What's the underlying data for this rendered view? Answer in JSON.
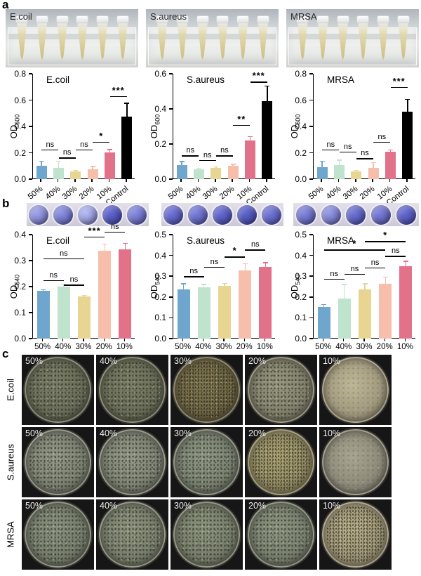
{
  "palette": {
    "bar_colors": [
      "#6FA6CD",
      "#BFE3CD",
      "#E9D592",
      "#F7BEAC",
      "#E2718A",
      "#000000"
    ],
    "axis_color": "#000000"
  },
  "panels": {
    "a": {
      "letter": "a",
      "photos": [
        {
          "label": "E.coil"
        },
        {
          "label": "S.aureus"
        },
        {
          "label": "MRSA"
        }
      ],
      "tubes_per_rack": 6
    },
    "b": {
      "letter": "b",
      "strips": [
        {
          "name": "E.coil wells",
          "wells": [
            "#7E81C1",
            "#6D72BB",
            "#9094C9",
            "#4C50AB",
            "#6A6EB8"
          ]
        },
        {
          "name": "S.aureus wells",
          "wells": [
            "#575BB0",
            "#6064B4",
            "#5155AD",
            "#4B4FA9",
            "#5C60B2"
          ]
        },
        {
          "name": "MRSA wells",
          "wells": [
            "#666AB6",
            "#7478BD",
            "#575BAF",
            "#6165B3",
            "#5054AC"
          ]
        }
      ]
    },
    "c": {
      "letter": "c",
      "rows": [
        {
          "label": "E.coil",
          "dishes": [
            {
              "label": "50%",
              "color": "#696C58",
              "texture": "speckled"
            },
            {
              "label": "40%",
              "color": "#6A6D58",
              "texture": "speckled"
            },
            {
              "label": "30%",
              "color": "#6F6646",
              "texture": "dense"
            },
            {
              "label": "20%",
              "color": "#82816D",
              "texture": "speckled"
            },
            {
              "label": "10%",
              "color": "#A29A7F",
              "texture": "lawn"
            }
          ]
        },
        {
          "label": "S.aureus",
          "dishes": [
            {
              "label": "50%",
              "color": "#7C8172",
              "texture": "speckled"
            },
            {
              "label": "40%",
              "color": "#7D8273",
              "texture": "speckled"
            },
            {
              "label": "30%",
              "color": "#788070",
              "texture": "speckled"
            },
            {
              "label": "20%",
              "color": "#958D66",
              "texture": "dense"
            },
            {
              "label": "10%",
              "color": "#8E8B7A",
              "texture": "lawn"
            }
          ]
        },
        {
          "label": "MRSA",
          "dishes": [
            {
              "label": "50%",
              "color": "#757C6C",
              "texture": "speckled"
            },
            {
              "label": "40%",
              "color": "#787E6C",
              "texture": "speckled"
            },
            {
              "label": "30%",
              "color": "#777D6B",
              "texture": "speckled"
            },
            {
              "label": "20%",
              "color": "#787F6E",
              "texture": "speckled"
            },
            {
              "label": "10%",
              "color": "#A1987A",
              "texture": "dense"
            }
          ]
        }
      ]
    }
  },
  "chart_data": [
    {
      "id": "a-ecoil",
      "type": "bar",
      "panel": "a",
      "title": "E.coil",
      "ylabel": "OD",
      "ylabel_sub": "600",
      "categories": [
        "50%",
        "40%",
        "30%",
        "20%",
        "10%",
        "Control"
      ],
      "values": [
        0.1,
        0.085,
        0.06,
        0.075,
        0.205,
        0.475
      ],
      "errors": [
        0.035,
        0.05,
        0.006,
        0.02,
        0.02,
        0.1
      ],
      "ylim": [
        0,
        0.8
      ],
      "yticks": [
        0.0,
        0.2,
        0.4,
        0.6,
        0.8
      ],
      "significance": [
        {
          "from": 0,
          "to": 1,
          "label": "ns",
          "y": 0.225
        },
        {
          "from": 1,
          "to": 2,
          "label": "ns",
          "y": 0.165
        },
        {
          "from": 2,
          "to": 3,
          "label": "ns",
          "y": 0.225
        },
        {
          "from": 3,
          "to": 4,
          "label": "*",
          "y": 0.285
        },
        {
          "from": 4,
          "to": 5,
          "label": "***",
          "y": 0.63
        }
      ]
    },
    {
      "id": "a-saureus",
      "type": "bar",
      "panel": "a",
      "title": "S.aureus",
      "ylabel": "OD",
      "ylabel_sub": "600",
      "categories": [
        "50%",
        "40%",
        "30%",
        "20%",
        "10%",
        "Control"
      ],
      "values": [
        0.08,
        0.058,
        0.063,
        0.078,
        0.22,
        0.445
      ],
      "errors": [
        0.02,
        0.004,
        0.006,
        0.006,
        0.022,
        0.085
      ],
      "ylim": [
        0,
        0.6
      ],
      "yticks": [
        0.0,
        0.2,
        0.4,
        0.6
      ],
      "significance": [
        {
          "from": 0,
          "to": 1,
          "label": "ns",
          "y": 0.135
        },
        {
          "from": 1,
          "to": 2,
          "label": "ns",
          "y": 0.11
        },
        {
          "from": 2,
          "to": 3,
          "label": "ns",
          "y": 0.135
        },
        {
          "from": 3,
          "to": 4,
          "label": "**",
          "y": 0.31
        },
        {
          "from": 4,
          "to": 5,
          "label": "***",
          "y": 0.555
        }
      ]
    },
    {
      "id": "a-mrsa",
      "type": "bar",
      "panel": "a",
      "title": "MRSA",
      "ylabel": "OD",
      "ylabel_sub": "600",
      "categories": [
        "50%",
        "40%",
        "30%",
        "20%",
        "10%",
        "Control"
      ],
      "values": [
        0.09,
        0.105,
        0.06,
        0.085,
        0.21,
        0.51
      ],
      "errors": [
        0.045,
        0.04,
        0.008,
        0.04,
        0.012,
        0.095
      ],
      "ylim": [
        0,
        0.8
      ],
      "yticks": [
        0.0,
        0.2,
        0.4,
        0.6,
        0.8
      ],
      "significance": [
        {
          "from": 0,
          "to": 1,
          "label": "ns",
          "y": 0.225
        },
        {
          "from": 1,
          "to": 2,
          "label": "ns",
          "y": 0.21
        },
        {
          "from": 2,
          "to": 3,
          "label": "ns",
          "y": 0.16
        },
        {
          "from": 3,
          "to": 4,
          "label": "ns",
          "y": 0.285
        },
        {
          "from": 4,
          "to": 5,
          "label": "***",
          "y": 0.7
        }
      ]
    },
    {
      "id": "b-ecoil",
      "type": "bar",
      "panel": "b",
      "title": "E.coil",
      "ylabel": "OD",
      "ylabel_sub": "540",
      "categories": [
        "50%",
        "40%",
        "30%",
        "20%",
        "10%"
      ],
      "values": [
        0.183,
        0.201,
        0.162,
        0.337,
        0.342
      ],
      "errors": [
        0.005,
        0.008,
        0.004,
        0.027,
        0.025
      ],
      "ylim": [
        0,
        0.4
      ],
      "yticks": [
        0.0,
        0.1,
        0.2,
        0.3,
        0.4
      ],
      "significance": [
        {
          "from": 0,
          "to": 1,
          "label": "ns",
          "y": 0.225
        },
        {
          "from": 1,
          "to": 2,
          "label": "ns",
          "y": 0.208
        },
        {
          "from": 0,
          "to": 2,
          "label": "ns",
          "y": 0.309
        },
        {
          "from": 2,
          "to": 3,
          "label": "***",
          "y": 0.393
        },
        {
          "from": 3,
          "to": 4,
          "label": "ns",
          "y": 0.412
        }
      ]
    },
    {
      "id": "b-saureus",
      "type": "bar",
      "panel": "b",
      "title": "S.aureus",
      "ylabel": "OD",
      "ylabel_sub": "540",
      "categories": [
        "50%",
        "40%",
        "30%",
        "20%",
        "10%"
      ],
      "values": [
        0.238,
        0.245,
        0.255,
        0.328,
        0.343
      ],
      "errors": [
        0.026,
        0.015,
        0.01,
        0.032,
        0.022
      ],
      "ylim": [
        0,
        0.5
      ],
      "yticks": [
        0.0,
        0.1,
        0.2,
        0.3,
        0.4,
        0.5
      ],
      "significance": [
        {
          "from": 0,
          "to": 1,
          "label": "ns",
          "y": 0.3
        },
        {
          "from": 1,
          "to": 2,
          "label": "ns",
          "y": 0.345
        },
        {
          "from": 2,
          "to": 3,
          "label": "*",
          "y": 0.395
        },
        {
          "from": 3,
          "to": 4,
          "label": "ns",
          "y": 0.428
        }
      ]
    },
    {
      "id": "b-mrsa",
      "type": "bar",
      "panel": "b",
      "title": "MRSA",
      "ylabel": "OD",
      "ylabel_sub": "540",
      "categories": [
        "50%",
        "40%",
        "30%",
        "20%",
        "10%"
      ],
      "values": [
        0.152,
        0.192,
        0.238,
        0.263,
        0.348
      ],
      "errors": [
        0.012,
        0.068,
        0.025,
        0.032,
        0.024
      ],
      "ylim": [
        0,
        0.5
      ],
      "yticks": [
        0.0,
        0.1,
        0.2,
        0.3,
        0.4,
        0.5
      ],
      "significance": [
        {
          "from": 0,
          "to": 1,
          "label": "ns",
          "y": 0.288
        },
        {
          "from": 1,
          "to": 2,
          "label": "ns",
          "y": 0.312
        },
        {
          "from": 2,
          "to": 3,
          "label": "ns",
          "y": 0.342
        },
        {
          "from": 3,
          "to": 4,
          "label": "ns",
          "y": 0.398
        },
        {
          "from": 0,
          "to": 3,
          "label": "*",
          "y": 0.428
        },
        {
          "from": 2,
          "to": 4,
          "label": "*",
          "y": 0.468
        }
      ]
    }
  ]
}
